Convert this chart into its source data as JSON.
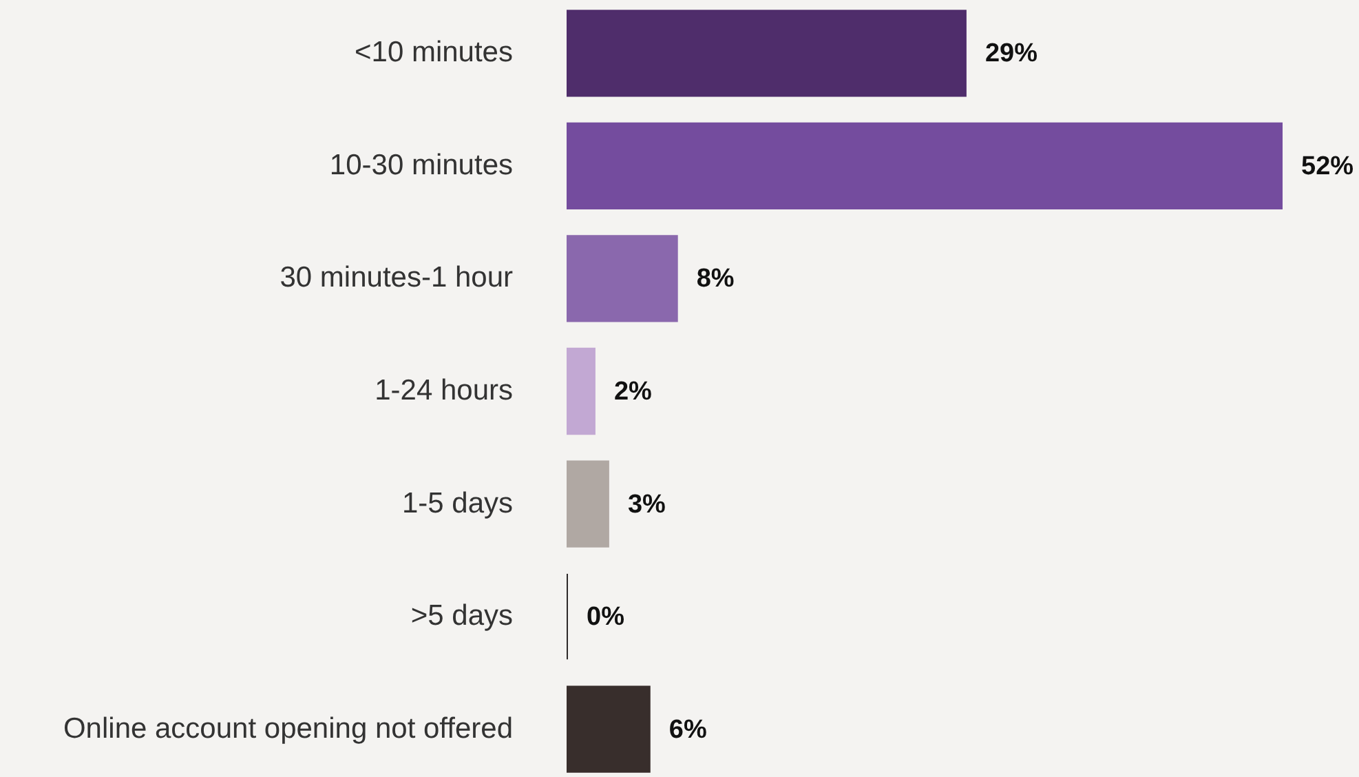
{
  "chart_data": {
    "type": "bar",
    "orientation": "horizontal",
    "categories": [
      "<10 minutes",
      "10-30 minutes",
      "30 minutes-1 hour",
      "1-24 hours",
      "1-5 days",
      ">5 days",
      "Online account opening not offered"
    ],
    "values": [
      29,
      52,
      8,
      2,
      3,
      0,
      6
    ],
    "colors": [
      "#4f2d6b",
      "#744c9e",
      "#8a68ad",
      "#c2a8d3",
      "#b0a8a3",
      "#2e2a2a",
      "#382e2c"
    ],
    "value_labels": [
      "29%",
      "52%",
      "8%",
      "2%",
      "3%",
      "0%",
      "6%"
    ]
  }
}
